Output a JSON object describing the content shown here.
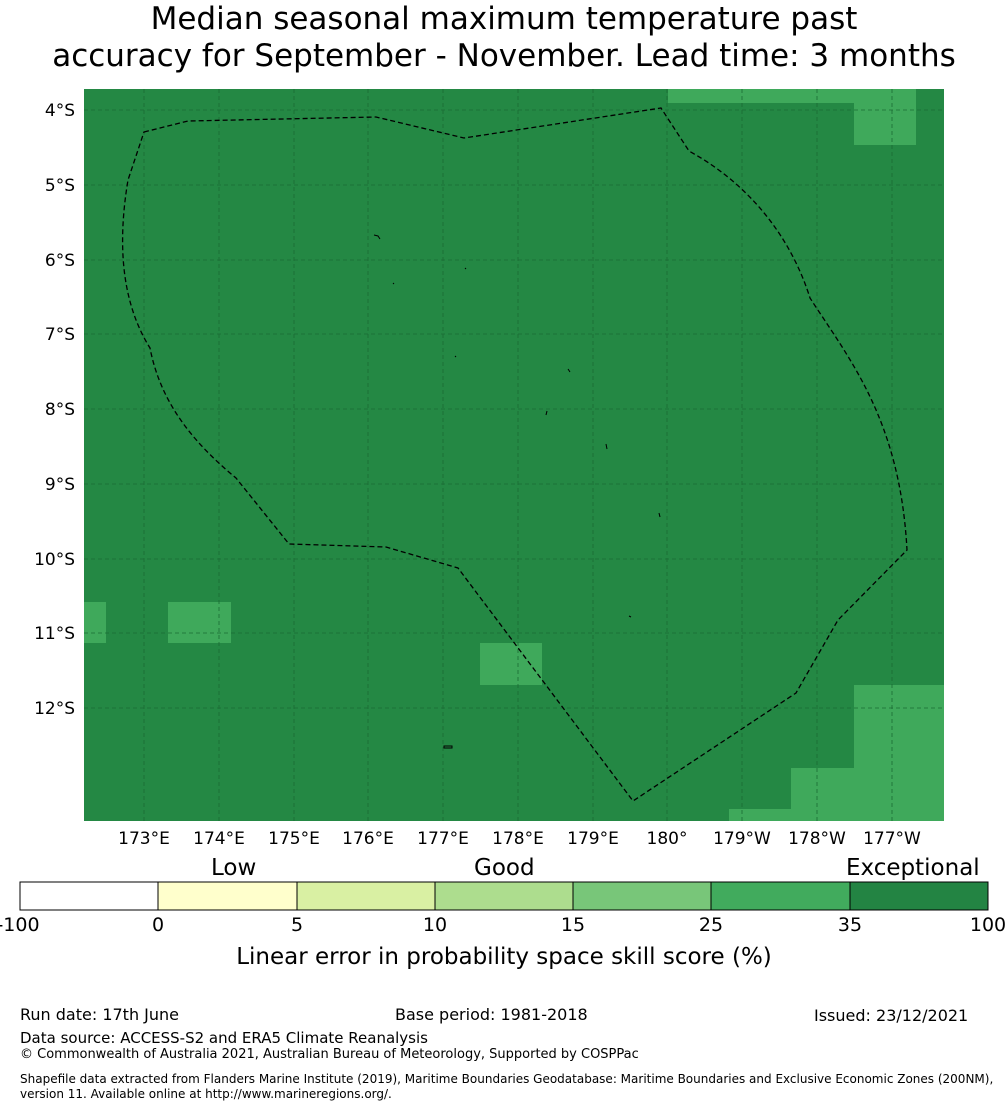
{
  "title_line1": "Median seasonal maximum temperature past",
  "title_line2": "accuracy for September - November. Lead time: 3 months",
  "map": {
    "lat_labels": [
      "4°S",
      "5°S",
      "6°S",
      "7°S",
      "8°S",
      "9°S",
      "10°S",
      "11°S",
      "12°S"
    ],
    "lon_labels": [
      "173°E",
      "174°E",
      "175°E",
      "176°E",
      "177°E",
      "178°E",
      "179°E",
      "180°",
      "179°W",
      "178°W",
      "177°W"
    ],
    "colors": {
      "background": "#248844",
      "patch": "#3fa95b",
      "grid": "#1b6b34"
    },
    "skill_category_background": "35 - 100",
    "skill_category_patches": "25 - 35"
  },
  "colorbar": {
    "category_labels": [
      "Low",
      "Good",
      "Exceptional"
    ],
    "ticks": [
      "-100",
      "0",
      "5",
      "10",
      "15",
      "25",
      "35",
      "100"
    ],
    "colors": [
      "#ffffff",
      "#ffffcc",
      "#d9f0a3",
      "#addd8e",
      "#78c679",
      "#41ab5d",
      "#238443"
    ],
    "label": "Linear error in probability space skill score (%)"
  },
  "footer": {
    "run_date": "Run date: 17th June",
    "base_period": "Base period: 1981-2018",
    "issued": "Issued: 23/12/2021",
    "data_source": "Data source: ACCESS-S2 and ERA5 Climate Reanalysis",
    "copyright": "© Commonwealth of Australia 2021, Australian Bureau of Meteorology, Supported by COSPPac",
    "shapefile": "Shapefile data extracted from Flanders Marine Institute (2019), Maritime Boundaries Geodatabase: Maritime Boundaries and Exclusive Economic Zones (200NM), version 11. Available online at http://www.marineregions.org/."
  }
}
